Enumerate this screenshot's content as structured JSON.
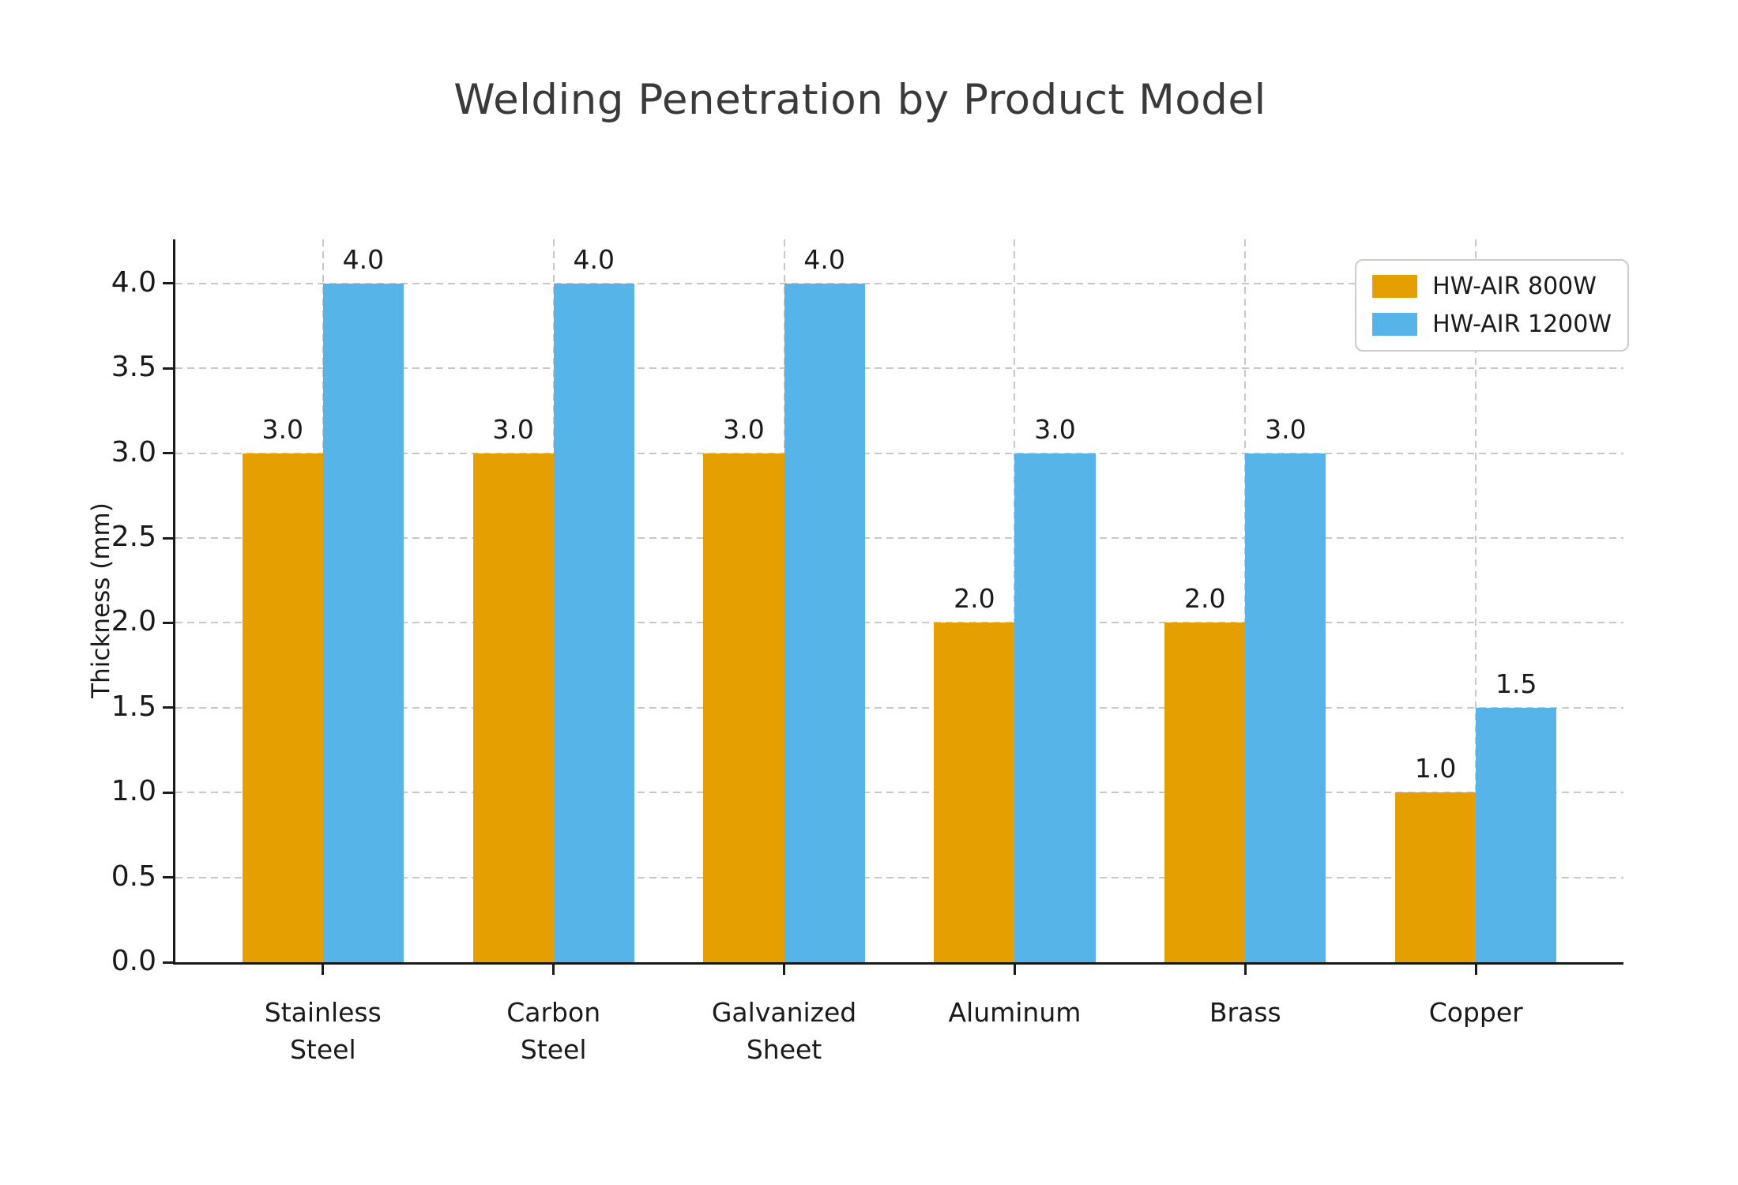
{
  "chart_data": {
    "type": "bar",
    "title": "Welding Penetration by Product Model",
    "xlabel": "",
    "ylabel": "Thickness (mm)",
    "categories": [
      "Stainless Steel",
      "Carbon Steel",
      "Galvanized Sheet",
      "Aluminum",
      "Brass",
      "Copper"
    ],
    "category_label_lines": [
      [
        "Stainless",
        "Steel"
      ],
      [
        "Carbon",
        "Steel"
      ],
      [
        "Galvanized",
        "Sheet"
      ],
      [
        "Aluminum"
      ],
      [
        "Brass"
      ],
      [
        "Copper"
      ]
    ],
    "series": [
      {
        "name": "HW-AIR 800W",
        "color": "#E69F00",
        "values": [
          3.0,
          3.0,
          3.0,
          2.0,
          2.0,
          1.0
        ]
      },
      {
        "name": "HW-AIR 1200W",
        "color": "#56B4E9",
        "values": [
          4.0,
          4.0,
          4.0,
          3.0,
          3.0,
          1.5
        ]
      }
    ],
    "bar_value_labels": [
      [
        "3.0",
        "3.0",
        "3.0",
        "2.0",
        "2.0",
        "1.0"
      ],
      [
        "4.0",
        "4.0",
        "4.0",
        "3.0",
        "3.0",
        "1.5"
      ]
    ],
    "yticks": [
      0.0,
      0.5,
      1.0,
      1.5,
      2.0,
      2.5,
      3.0,
      3.5,
      4.0
    ],
    "ylim": [
      0,
      4.26
    ],
    "grid": true,
    "gridline_style": "dashed",
    "legend_position": "upper right",
    "colors": {
      "grid": "#c8c8c8",
      "axis": "#1a1a1a",
      "title_text": "#3a3a3a",
      "tick_text": "#1a1a1a"
    }
  }
}
